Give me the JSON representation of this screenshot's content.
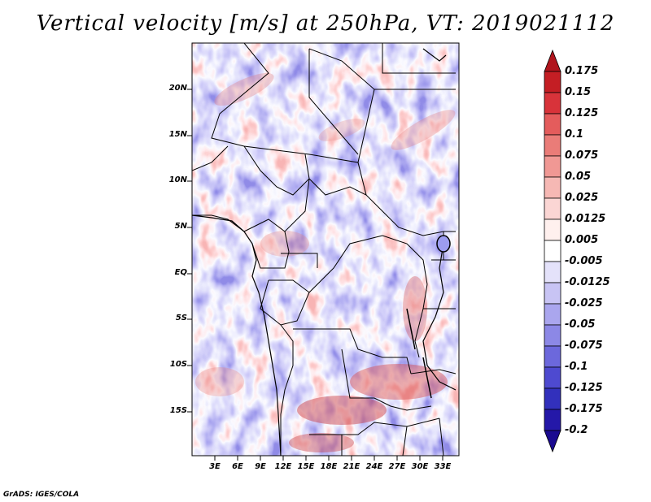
{
  "title": "Vertical velocity [m/s] at 250hPa, VT: 2019021112",
  "lat_labels": [
    "20N",
    "15N",
    "10N",
    "5N",
    "EQ",
    "5S",
    "10S",
    "15S"
  ],
  "lon_labels": [
    "3E",
    "6E",
    "9E",
    "12E",
    "15E",
    "18E",
    "21E",
    "24E",
    "27E",
    "30E",
    "33E"
  ],
  "colorbar": {
    "labels": [
      "0.175",
      "0.15",
      "0.125",
      "0.1",
      "0.075",
      "0.05",
      "0.025",
      "0.0125",
      "0.005",
      "-0.005",
      "-0.0125",
      "-0.025",
      "-0.05",
      "-0.075",
      "-0.1",
      "-0.125",
      "-0.175",
      "-0.2"
    ],
    "colors": [
      "#b0141c",
      "#c41e24",
      "#d8333a",
      "#e45c5c",
      "#ea7c78",
      "#f09894",
      "#f6b8b4",
      "#fbd6d4",
      "#fff0ee",
      "#ffffff",
      "#e4e2fa",
      "#c8c4f4",
      "#aaa6ee",
      "#8c88e6",
      "#6c68dc",
      "#4e4ad0",
      "#3230bc",
      "#2418a8",
      "#1a0a90"
    ]
  },
  "credit": "GrADS: IGES/COLA"
}
